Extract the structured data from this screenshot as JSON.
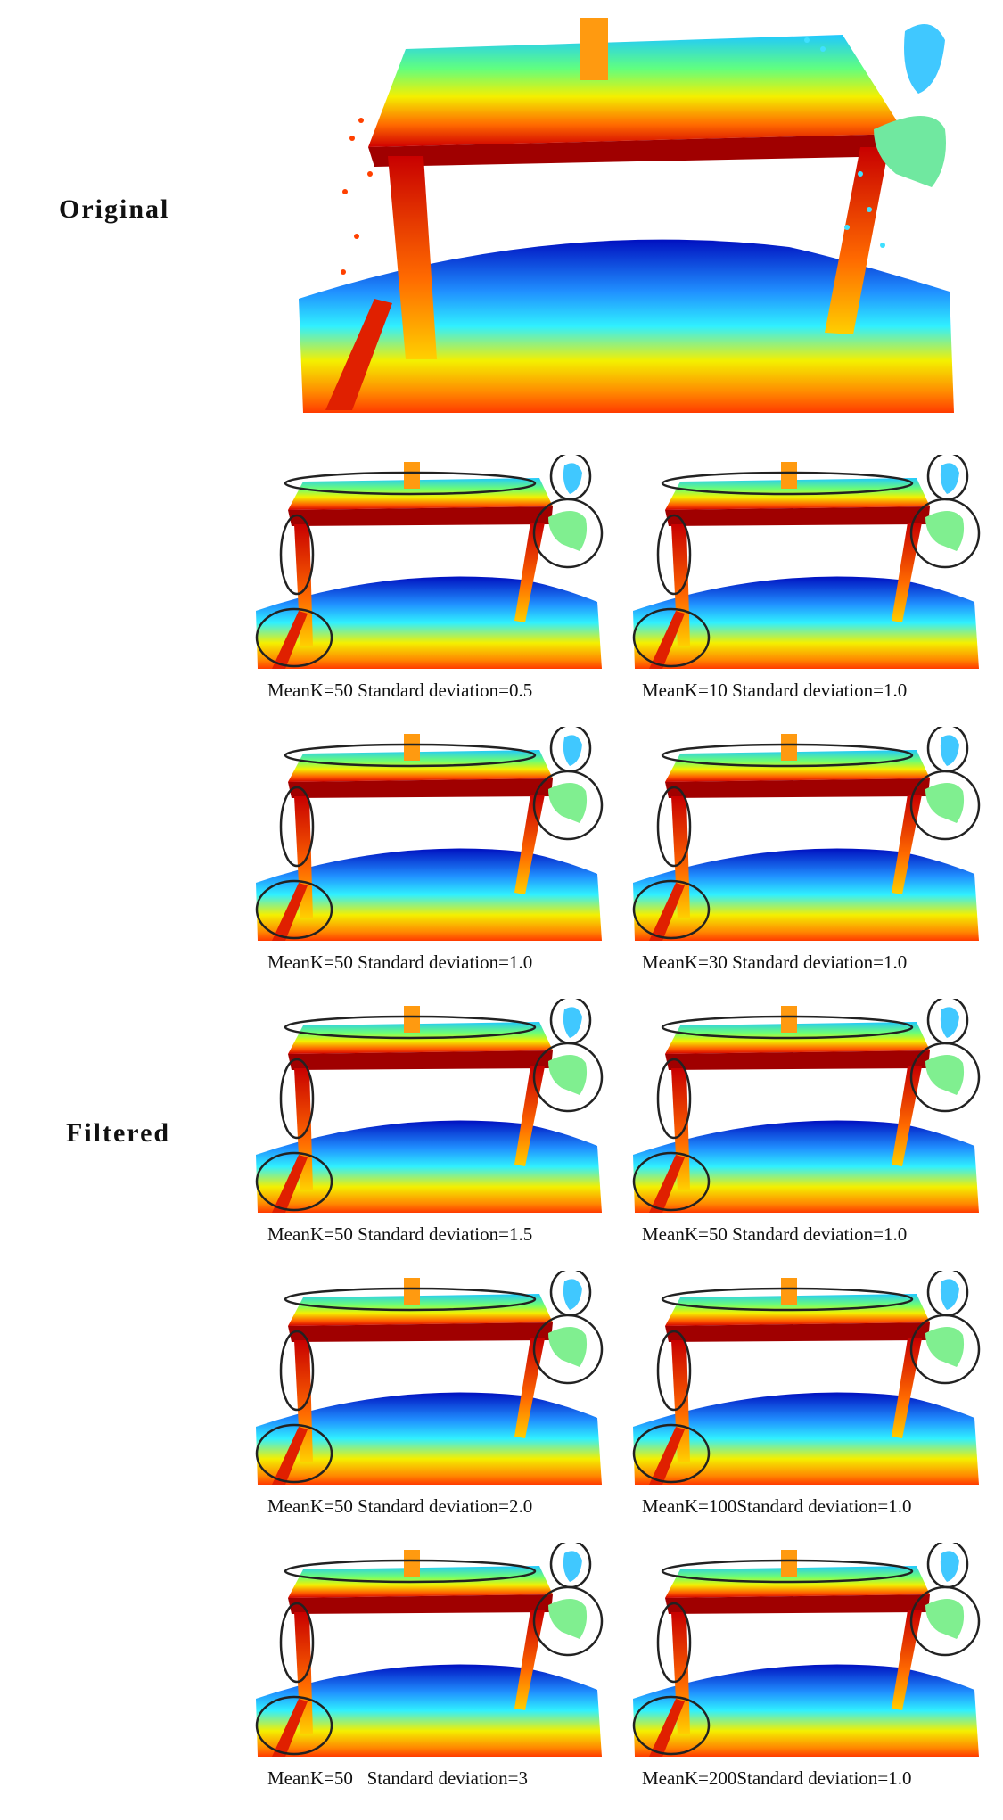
{
  "labels": {
    "original": "Original",
    "filtered": "Filtered"
  },
  "colors": {
    "red": "#c80000",
    "orange": "#ff7a00",
    "yellow": "#f4f000",
    "green": "#40ff60",
    "cyan": "#20d8ff",
    "blue": "#0020d0",
    "circle": "#222222"
  },
  "panels": [
    {
      "caption": "MeanK=50 Standard deviation=0.5"
    },
    {
      "caption": "MeanK=10 Standard deviation=1.0"
    },
    {
      "caption": "MeanK=50 Standard deviation=1.0"
    },
    {
      "caption": "MeanK=30 Standard deviation=1.0"
    },
    {
      "caption": "MeanK=50 Standard deviation=1.5"
    },
    {
      "caption": "MeanK=50 Standard deviation=1.0"
    },
    {
      "caption": "MeanK=50 Standard deviation=2.0"
    },
    {
      "caption": "MeanK=100Standard deviation=1.0"
    },
    {
      "caption": "MeanK=50   Standard deviation=3"
    },
    {
      "caption": "MeanK=200Standard deviation=1.0"
    }
  ]
}
